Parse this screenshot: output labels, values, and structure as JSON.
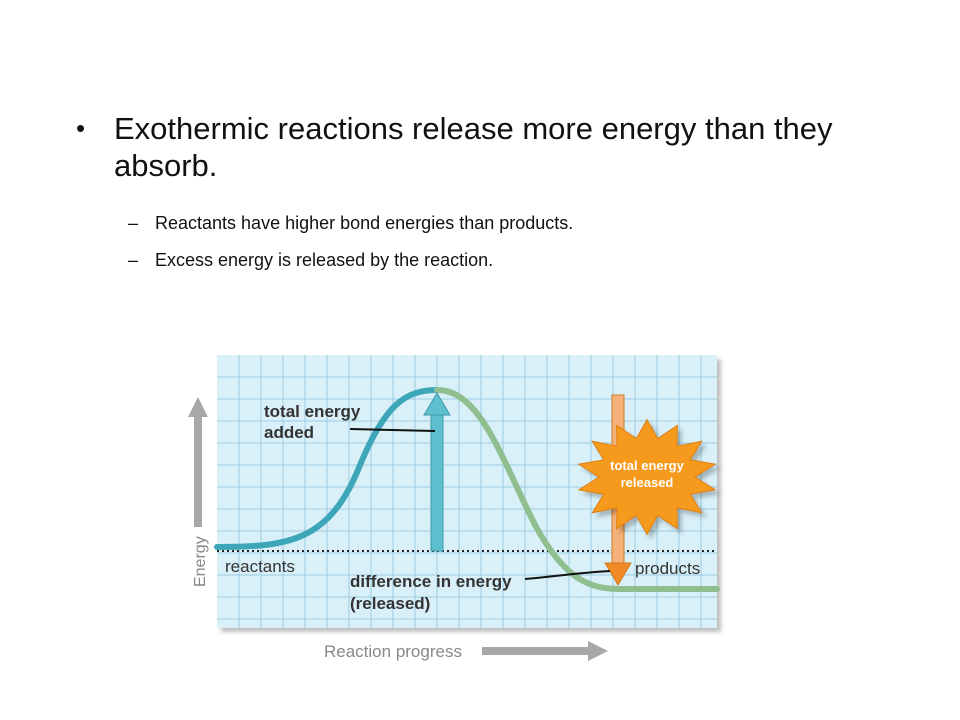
{
  "slide": {
    "bullet": "•",
    "main_point": "Exothermic reactions release more energy than they absorb.",
    "dash": "–",
    "sub_points": [
      "Reactants have higher bond energies than products.",
      "Excess energy is released by the reaction."
    ]
  },
  "diagram": {
    "y_axis_label": "Energy",
    "x_axis_label": "Reaction progress",
    "label_added_line1": "total energy",
    "label_added_line2": "added",
    "label_released_line1": "total energy",
    "label_released_line2": "released",
    "label_reactants": "reactants",
    "label_products": "products",
    "label_difference_line1": "difference in energy",
    "label_difference_line2": "(released)",
    "colors": {
      "grid_background": "#d9f0f8",
      "grid_lines": "#9ccde3",
      "curve_rising": "#3ea6b9",
      "curve_falling": "#8fbe8f",
      "arrow_added": "#5ec0cf",
      "arrow_released": "#f08a24",
      "starburst": "#f59a1e",
      "axis_arrows": "#a8a8a8",
      "label_text": "#333333"
    }
  }
}
